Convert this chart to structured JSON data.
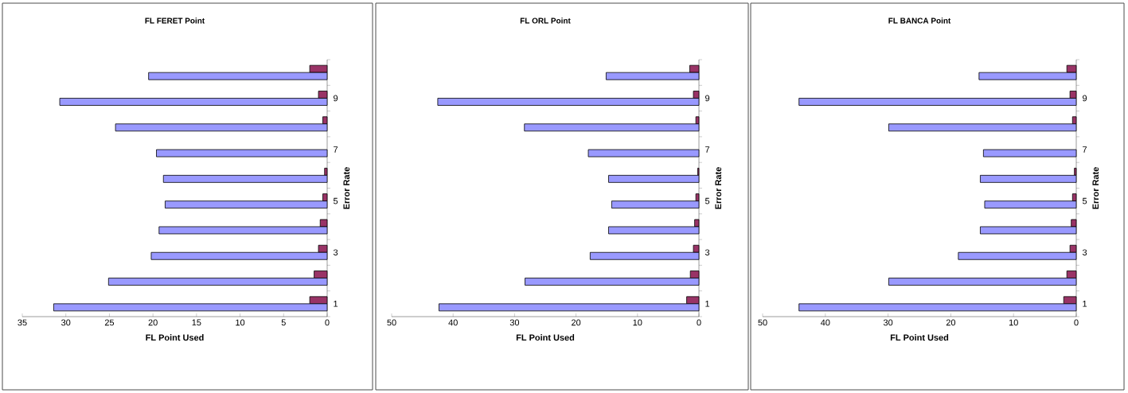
{
  "chart_data": [
    {
      "type": "bar",
      "orientation": "horizontal",
      "title": "FL FERET Point",
      "xlabel": "FL Point Used",
      "ylabel": "Error Rate",
      "categories": [
        null,
        "9",
        null,
        "7",
        null,
        "5",
        null,
        "3",
        null,
        "1"
      ],
      "series": [
        {
          "color": "#993366",
          "values": [
            2.0,
            1.0,
            0.5,
            null,
            0.3,
            0.5,
            0.8,
            1.0,
            1.5,
            2.0
          ]
        },
        {
          "color": "#9999ff",
          "values": [
            20.5,
            30.7,
            24.3,
            19.6,
            18.8,
            18.6,
            19.3,
            20.2,
            25.1,
            31.4
          ]
        }
      ],
      "xlim": [
        35,
        0
      ],
      "xticks": [
        35,
        30,
        25,
        20,
        15,
        10,
        5,
        0
      ]
    },
    {
      "type": "bar",
      "orientation": "horizontal",
      "title": "FL ORL Point",
      "xlabel": "FL Point Used",
      "ylabel": "Error Rate",
      "categories": [
        null,
        "9",
        null,
        "7",
        null,
        "5",
        null,
        "3",
        null,
        "1"
      ],
      "series": [
        {
          "color": "#993366",
          "values": [
            1.5,
            0.9,
            0.5,
            null,
            0.2,
            0.5,
            0.7,
            0.9,
            1.4,
            2.0
          ]
        },
        {
          "color": "#9999ff",
          "values": [
            15.1,
            42.5,
            28.4,
            18.0,
            14.7,
            14.2,
            14.7,
            17.7,
            28.3,
            42.3
          ]
        }
      ],
      "xlim": [
        50,
        0
      ],
      "xticks": [
        50,
        40,
        30,
        20,
        10,
        0
      ]
    },
    {
      "type": "bar",
      "orientation": "horizontal",
      "title": "FL  BANCA Point",
      "xlabel": "FL Point Used",
      "ylabel": "Error Rate",
      "categories": [
        null,
        "9",
        null,
        "7",
        null,
        "5",
        null,
        "3",
        null,
        "1"
      ],
      "series": [
        {
          "color": "#993366",
          "values": [
            1.5,
            1.0,
            0.6,
            null,
            0.3,
            0.6,
            0.8,
            1.0,
            1.5,
            2.0
          ]
        },
        {
          "color": "#9999ff",
          "values": [
            15.5,
            44.2,
            29.9,
            14.8,
            15.3,
            14.6,
            15.3,
            18.8,
            29.9,
            44.2
          ]
        }
      ],
      "xlim": [
        50,
        0
      ],
      "xticks": [
        50,
        40,
        30,
        20,
        10,
        0
      ]
    }
  ]
}
